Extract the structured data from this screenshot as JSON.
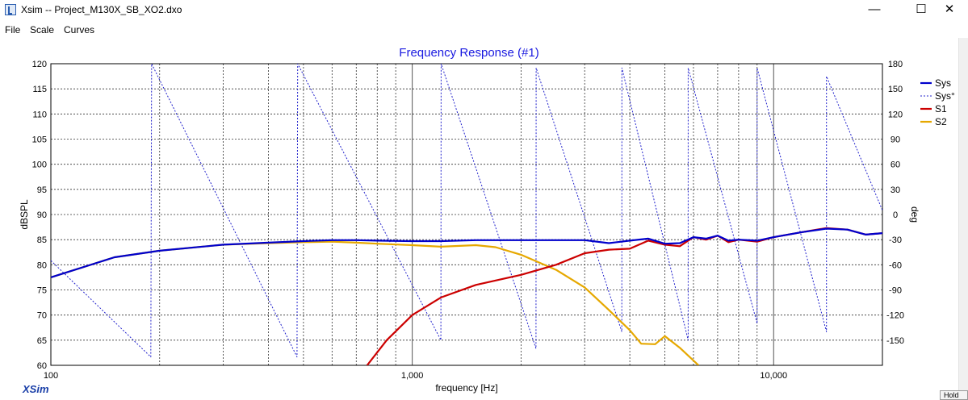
{
  "window": {
    "title": "Xsim -- Project_M130X_SB_XO2.dxo",
    "minimize": "—",
    "maximize": "☐",
    "close": "✕"
  },
  "menu": [
    "File",
    "Scale",
    "Curves"
  ],
  "brand": "XSim",
  "hold_button": "Hold",
  "chart_data": {
    "type": "line",
    "title": "Frequency Response (#1)",
    "xlabel": "frequency [Hz]",
    "ylabel": "dBSPL",
    "y2label": "deg",
    "xscale": "log",
    "xlim": [
      100,
      20000
    ],
    "ylim": [
      60,
      120
    ],
    "y2lim": [
      -180,
      180
    ],
    "x_tick_labels": [
      "100",
      "1,000",
      "10,000"
    ],
    "y_ticks": [
      60,
      65,
      70,
      75,
      80,
      85,
      90,
      95,
      100,
      105,
      110,
      115,
      120
    ],
    "y2_ticks": [
      180,
      150,
      120,
      90,
      60,
      30,
      0,
      -30,
      -60,
      -90,
      -120,
      -150
    ],
    "grid": true,
    "legend_position": "right",
    "colors": {
      "Sys": "#0000cc",
      "Sys°": "#2222cc",
      "S1": "#cc0000",
      "S2": "#e6a800"
    },
    "series": [
      {
        "name": "Sys",
        "axis": "left",
        "x": [
          100,
          150,
          200,
          300,
          400,
          500,
          600,
          700,
          800,
          1000,
          1200,
          1500,
          2000,
          2500,
          3000,
          3500,
          4000,
          4500,
          5000,
          5500,
          6000,
          6500,
          7000,
          7500,
          8000,
          9000,
          10000,
          12000,
          14000,
          16000,
          18000,
          20000
        ],
        "y": [
          77.5,
          81.5,
          82.8,
          84,
          84.4,
          84.7,
          84.9,
          84.9,
          84.8,
          84.7,
          84.7,
          84.9,
          84.9,
          84.9,
          84.9,
          84.3,
          84.8,
          85.2,
          84.2,
          84.3,
          85.5,
          85.2,
          85.8,
          84.8,
          85,
          84.8,
          85.5,
          86.5,
          87.2,
          87,
          86,
          86.3
        ]
      },
      {
        "name": "Sys°",
        "axis": "right",
        "x": [
          100,
          189,
          190,
          480,
          482,
          1200,
          1202,
          2200,
          2202,
          3800,
          3802,
          5800,
          5802,
          9000,
          9002,
          14000,
          14002,
          20000
        ],
        "y": [
          -55,
          -170,
          180,
          -170,
          180,
          -150,
          180,
          -160,
          175,
          -140,
          175,
          -150,
          175,
          -130,
          175,
          -140,
          165,
          5
        ]
      },
      {
        "name": "S1",
        "axis": "left",
        "x": [
          750,
          850,
          1000,
          1200,
          1500,
          2000,
          2500,
          3000,
          3500,
          4000,
          4500,
          5000,
          5500,
          6000,
          6500,
          7000,
          7500,
          8000,
          9000,
          10000,
          12000,
          14000,
          16000,
          18000,
          20000
        ],
        "y": [
          60,
          65,
          70,
          73.5,
          76,
          78,
          80,
          82.3,
          83,
          83.2,
          84.8,
          84,
          83.7,
          85.5,
          85,
          85.8,
          84.5,
          85,
          84.6,
          85.5,
          86.5,
          87.3,
          87,
          86,
          86.3
        ]
      },
      {
        "name": "S2",
        "axis": "left",
        "x": [
          100,
          150,
          200,
          300,
          400,
          500,
          600,
          700,
          800,
          1000,
          1200,
          1500,
          1700,
          2000,
          2500,
          3000,
          3500,
          4000,
          4300,
          4700,
          5000,
          5500,
          6200
        ],
        "y": [
          77.5,
          81.5,
          82.8,
          84,
          84.3,
          84.5,
          84.6,
          84.4,
          84.2,
          83.9,
          83.6,
          83.9,
          83.5,
          82,
          79,
          75.5,
          71,
          67,
          64.3,
          64.2,
          65.8,
          63.5,
          60
        ]
      }
    ]
  }
}
